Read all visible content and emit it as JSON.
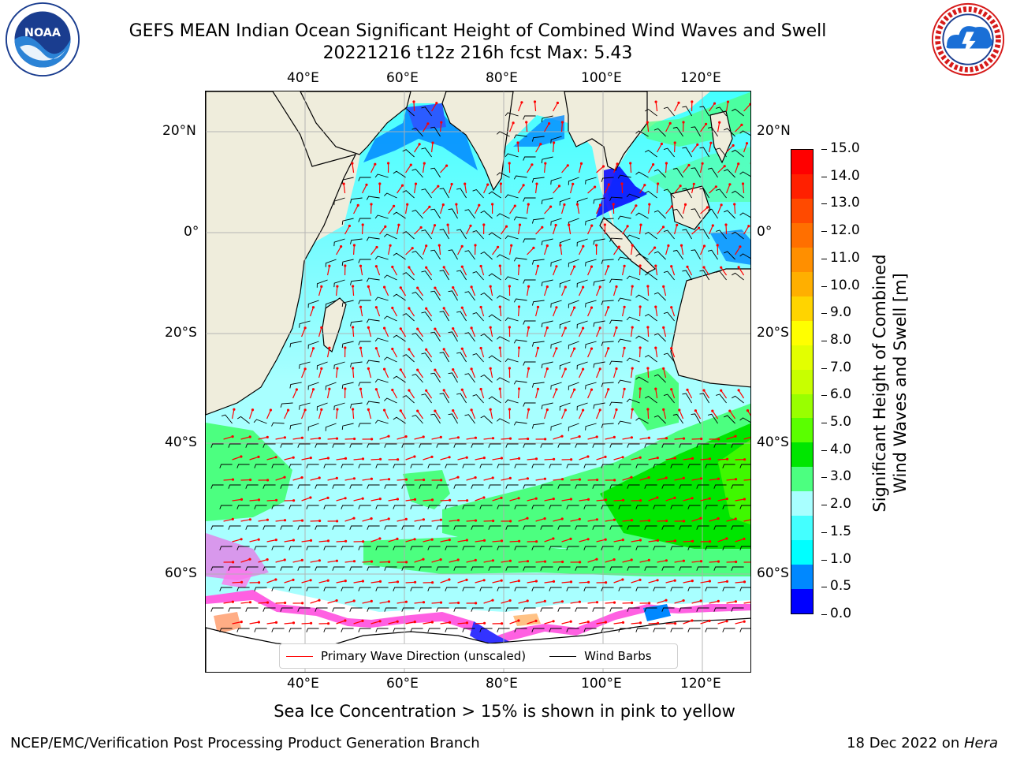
{
  "header": {
    "title_line1": "GEFS MEAN Indian Ocean Significant Height of Combined Wind Waves and Swell",
    "title_line2": "20221216 t12z 216h fcst   Max: 5.43"
  },
  "logos": {
    "left": {
      "name": "noaa-logo",
      "text": "NOAA",
      "ring_text": "NATIONAL OCEANIC AND ATMOSPHERIC ADMINISTRATION · U.S. DEPARTMENT OF COMMERCE"
    },
    "right": {
      "name": "nws-logo",
      "ring_text": "NATIONAL WEATHER SERVICE"
    }
  },
  "map": {
    "lon_ticks": [
      "40°E",
      "60°E",
      "80°E",
      "100°E",
      "120°E"
    ],
    "lat_ticks": [
      "20°N",
      "0°",
      "20°S",
      "40°S",
      "60°S"
    ],
    "colors": {
      "land": "#efeddc",
      "coast": "#000000",
      "grid": "#b0b0b0",
      "wave_arrow": "#ff0000",
      "wind_barb": "#000000"
    }
  },
  "legend": {
    "primary_wave": "Primary Wave Direction (unscaled)",
    "wind_barbs": "Wind Barbs"
  },
  "colorbar": {
    "title_line1": "Significant Height of Combined",
    "title_line2": "Wind Waves and Swell [m]",
    "tick_labels": [
      "15.0",
      "14.0",
      "13.0",
      "12.0",
      "11.0",
      "10.0",
      "9.0",
      "8.0",
      "7.0",
      "6.0",
      "5.0",
      "4.0",
      "3.0",
      "2.0",
      "1.5",
      "1.0",
      "0.5",
      "0.0"
    ],
    "colors_top_to_bottom": [
      "#ff0000",
      "#ff2000",
      "#ff4a00",
      "#ff6f00",
      "#ff8f00",
      "#ffaf00",
      "#ffd400",
      "#ffff00",
      "#e3ff00",
      "#c8ff00",
      "#99ff00",
      "#5aff00",
      "#00e600",
      "#4cff80",
      "#a8ffff",
      "#44ffff",
      "#00ffff",
      "#0088ff",
      "#0000ff"
    ]
  },
  "notes": {
    "sea_ice": "Sea Ice Concentration > 15% is shown in pink to yellow"
  },
  "footer": {
    "left": "NCEP/EMC/Verification Post Processing Product Generation Branch",
    "date": "18 Dec 2022 on ",
    "host": "Hera"
  }
}
